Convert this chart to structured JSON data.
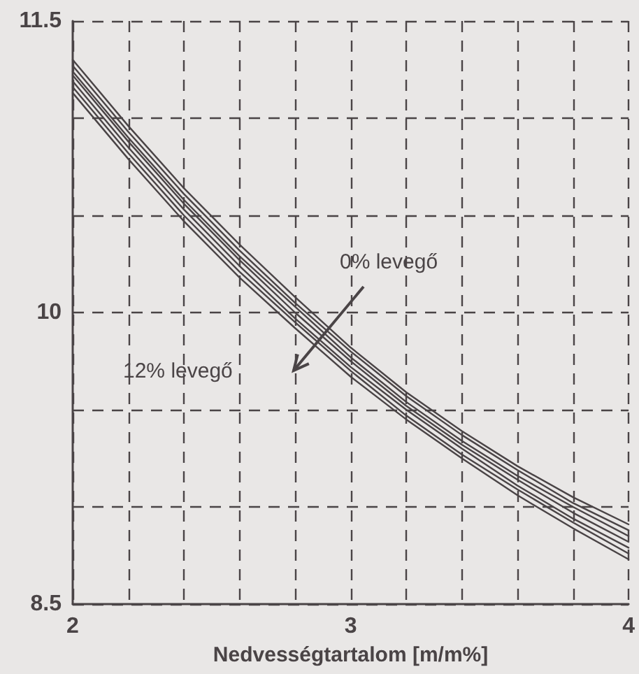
{
  "chart_data": {
    "type": "line",
    "xlabel": "Nedvességtartalom [m/m%]",
    "x": [
      2,
      2.2,
      2.4,
      2.6,
      2.8,
      3,
      3.2,
      3.4,
      3.6,
      3.8,
      4
    ],
    "series": [
      {
        "color": "#4a4446",
        "values": [
          11.3,
          10.96,
          10.64,
          10.35,
          10.08,
          9.82,
          9.59,
          9.39,
          9.21,
          9.05,
          8.91
        ]
      },
      {
        "color": "#4a4446",
        "values": [
          11.27,
          10.93,
          10.61,
          10.32,
          10.05,
          9.8,
          9.57,
          9.37,
          9.19,
          9.02,
          8.88
        ]
      },
      {
        "color": "#4a4446",
        "values": [
          11.24,
          10.9,
          10.58,
          10.29,
          10.03,
          9.77,
          9.54,
          9.34,
          9.16,
          9.0,
          8.85
        ]
      },
      {
        "color": "#4a4446",
        "values": [
          11.22,
          10.88,
          10.56,
          10.27,
          10.0,
          9.75,
          9.52,
          9.32,
          9.14,
          8.97,
          8.82
        ]
      },
      {
        "color": "#4a4446",
        "values": [
          11.19,
          10.85,
          10.53,
          10.24,
          9.97,
          9.72,
          9.5,
          9.3,
          9.11,
          8.94,
          8.79
        ]
      },
      {
        "color": "#4a4446",
        "values": [
          11.16,
          10.82,
          10.5,
          10.21,
          9.95,
          9.7,
          9.47,
          9.27,
          9.09,
          8.92,
          8.76
        ]
      },
      {
        "color": "#4a4446",
        "values": [
          11.13,
          10.79,
          10.47,
          10.18,
          9.92,
          9.67,
          9.45,
          9.25,
          9.06,
          8.89,
          8.73
        ]
      }
    ],
    "xlim": [
      2,
      4
    ],
    "xticks": [
      2,
      {
        "value": 2.2,
        "label": null
      },
      {
        "value": 2.4,
        "label": null
      },
      {
        "value": 2.6,
        "label": null
      },
      {
        "value": 2.8,
        "label": null
      },
      3,
      {
        "value": 3.2,
        "label": null
      },
      {
        "value": 3.4,
        "label": null
      },
      {
        "value": 3.6,
        "label": null
      },
      {
        "value": 3.8,
        "label": null
      },
      4
    ],
    "ylim": [
      8.5,
      11.5
    ],
    "yticks": [
      8.5,
      {
        "value": 9,
        "label": null
      },
      {
        "value": 9.5,
        "label": null
      },
      10,
      {
        "value": 10.5,
        "label": null
      },
      {
        "value": 11,
        "label": null
      },
      11.5
    ],
    "grid": true,
    "marker": "none",
    "line_style": "solid",
    "annotations": [
      "0% levegő",
      "12% levegő"
    ]
  }
}
